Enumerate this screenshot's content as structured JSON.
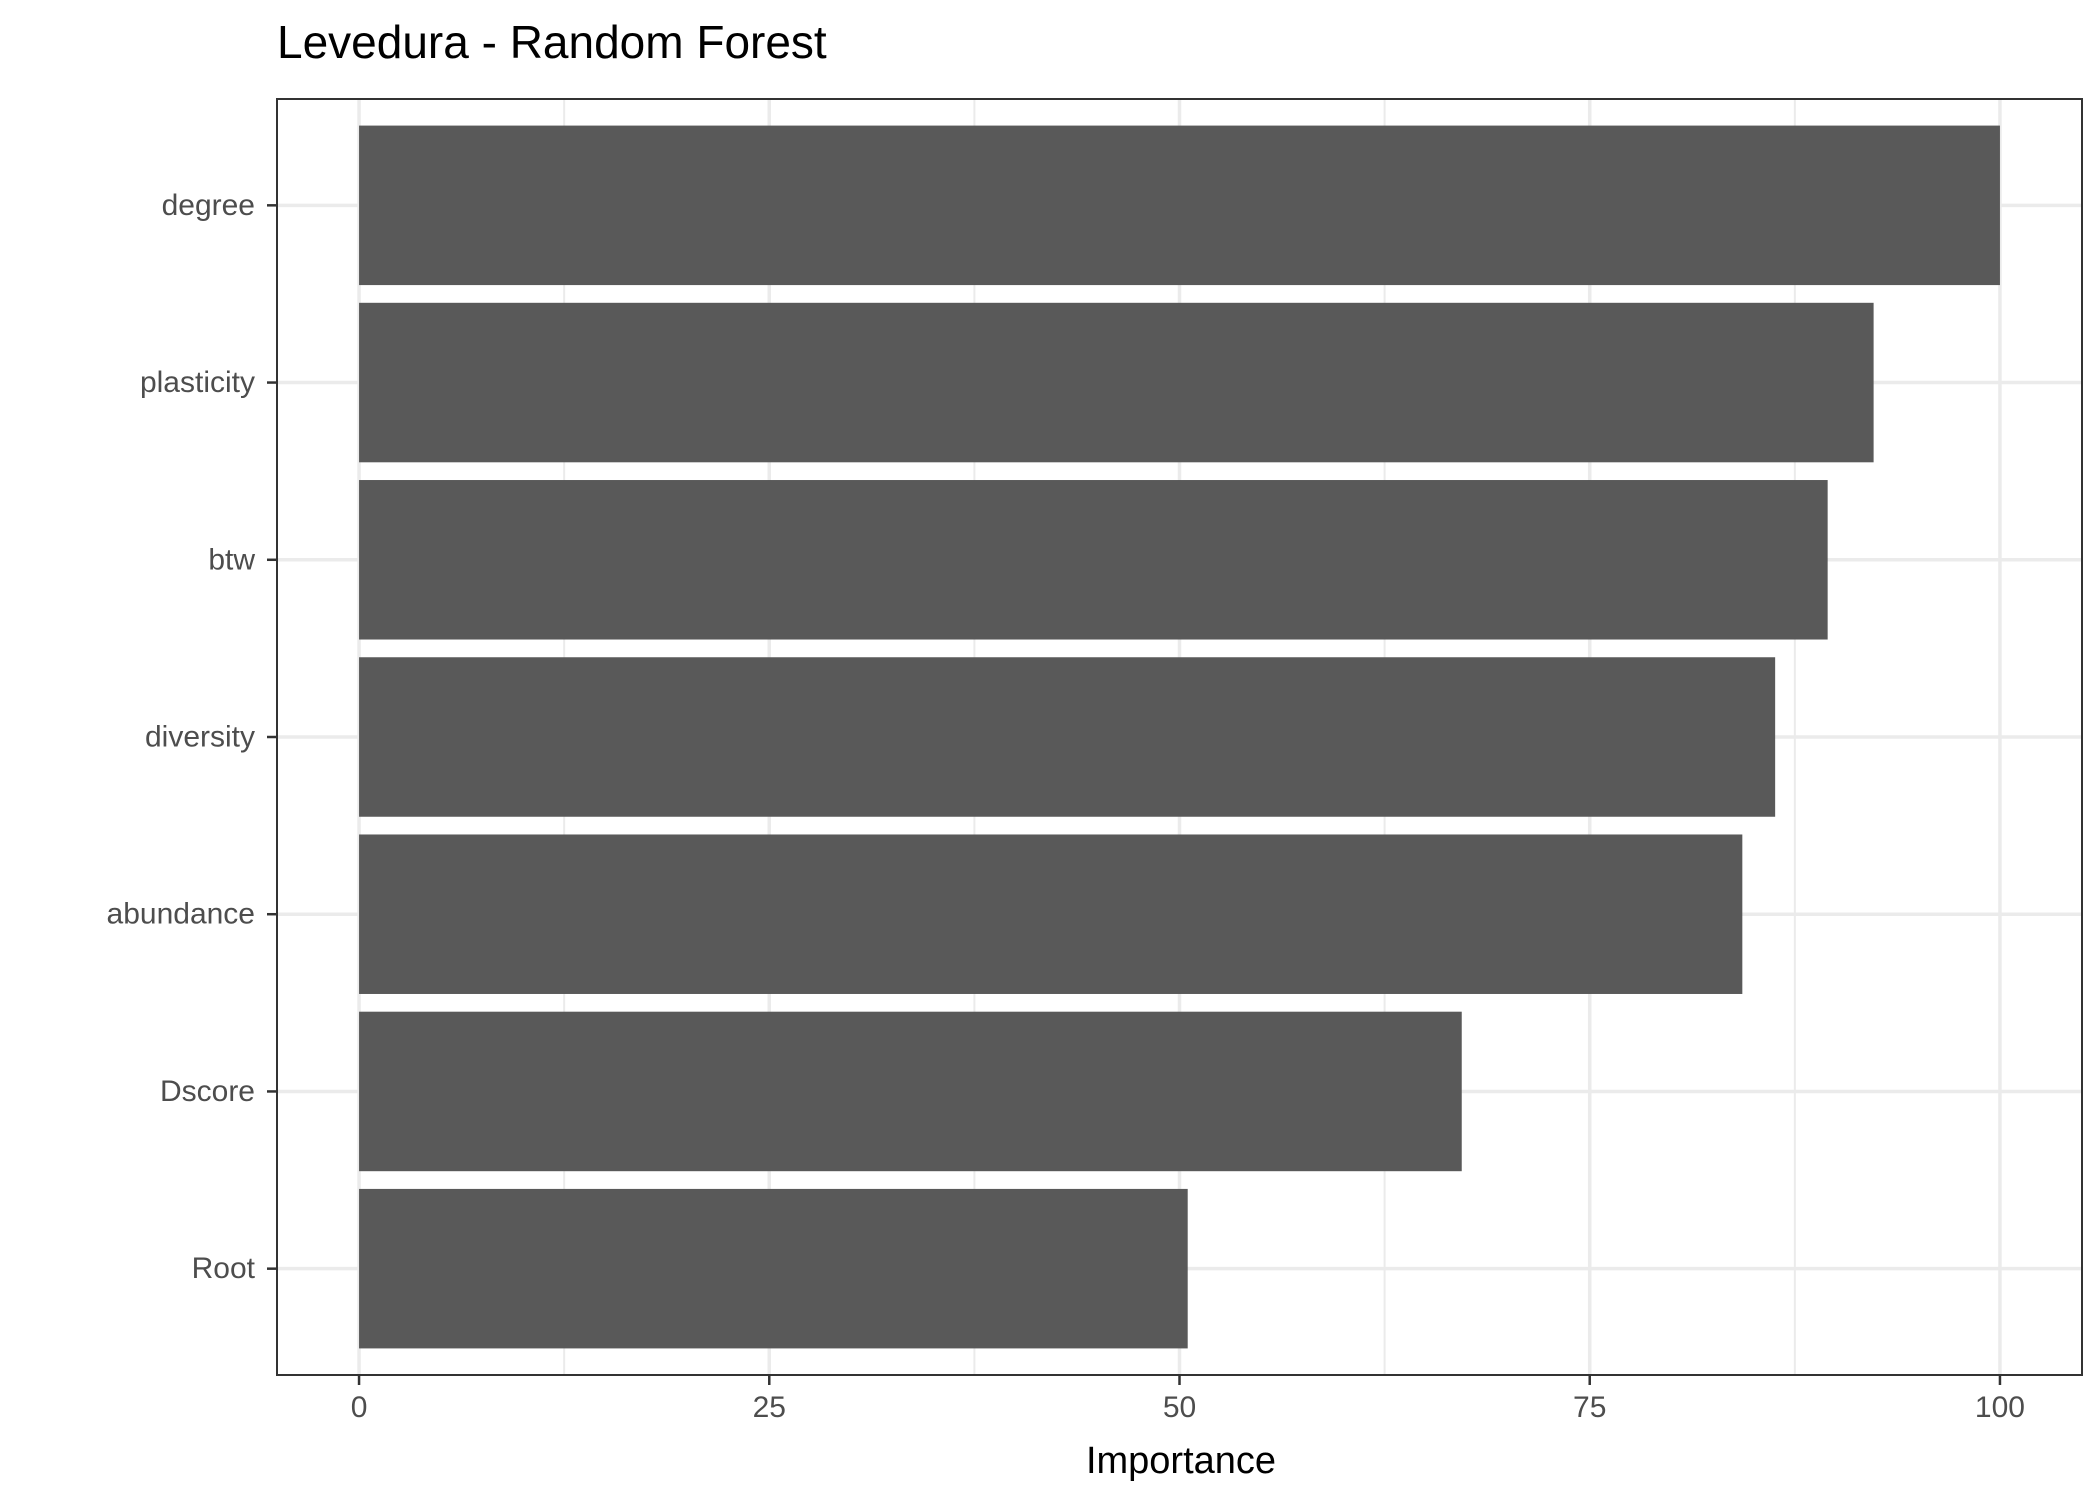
{
  "chart_data": {
    "type": "bar",
    "orientation": "horizontal",
    "title": "Levedura - Random Forest",
    "xlabel": "Importance",
    "ylabel": "",
    "categories": [
      "degree",
      "plasticity",
      "btw",
      "diversity",
      "abundance",
      "Dscore",
      "Root"
    ],
    "values": [
      100,
      92.3,
      89.5,
      86.3,
      84.3,
      67.2,
      50.5
    ],
    "xlim": [
      -5,
      105
    ],
    "xticks": [
      0,
      25,
      50,
      75,
      100
    ],
    "xtick_labels": [
      "0",
      "25",
      "50",
      "75",
      "100"
    ],
    "grid": true,
    "bar_color": "#595959",
    "grid_color": "#ebebeb"
  }
}
